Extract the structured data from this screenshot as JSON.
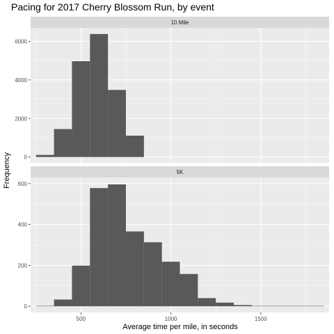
{
  "chart_data": {
    "type": "bar",
    "title": "Pacing for 2017 Cherry Blossom Run, by event",
    "xlabel": "Average time per mile, in seconds",
    "ylabel": "Frequency",
    "bin_width": 100,
    "xlim": [
      220,
      1880
    ],
    "x_ticks": [
      500,
      1000,
      1500
    ],
    "x_tick_labels": [
      "500",
      "1000",
      "1500"
    ],
    "grid": true,
    "colors": {
      "bar": "#595959",
      "panel": "#ebebeb",
      "grid": "#ffffff",
      "strip": "#d9d9d9"
    },
    "panels": [
      {
        "label": "10 Mile",
        "ylim": [
          -300,
          6700
        ],
        "y_ticks": [
          0,
          2000,
          4000,
          6000
        ],
        "y_tick_labels": [
          "0",
          "2000",
          "4000",
          "6000"
        ],
        "bins": [
          {
            "x": 300,
            "count": 110
          },
          {
            "x": 400,
            "count": 1450
          },
          {
            "x": 500,
            "count": 4970
          },
          {
            "x": 600,
            "count": 6380
          },
          {
            "x": 700,
            "count": 3480
          },
          {
            "x": 800,
            "count": 1110
          }
        ]
      },
      {
        "label": "5K",
        "ylim": [
          -30,
          630
        ],
        "y_ticks": [
          0,
          200,
          400,
          600
        ],
        "y_tick_labels": [
          "0",
          "200",
          "400",
          "600"
        ],
        "bins": [
          {
            "x": 300,
            "count": 2
          },
          {
            "x": 400,
            "count": 33
          },
          {
            "x": 500,
            "count": 199
          },
          {
            "x": 600,
            "count": 578
          },
          {
            "x": 700,
            "count": 596
          },
          {
            "x": 800,
            "count": 366
          },
          {
            "x": 900,
            "count": 313
          },
          {
            "x": 1000,
            "count": 218
          },
          {
            "x": 1100,
            "count": 158
          },
          {
            "x": 1200,
            "count": 40
          },
          {
            "x": 1300,
            "count": 18
          },
          {
            "x": 1400,
            "count": 6
          },
          {
            "x": 1500,
            "count": 2
          },
          {
            "x": 1600,
            "count": 0
          },
          {
            "x": 1700,
            "count": 1
          },
          {
            "x": 1800,
            "count": 1
          }
        ]
      }
    ]
  }
}
